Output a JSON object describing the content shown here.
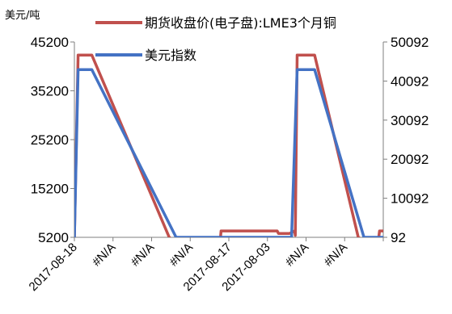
{
  "chart_data": {
    "type": "line",
    "ylabel_left": "美元/吨",
    "left_axis": {
      "ylim": [
        5200,
        45200
      ],
      "ticks": [
        "45200",
        "35200",
        "25200",
        "15200",
        "5200"
      ]
    },
    "right_axis": {
      "ylim": [
        92,
        50092
      ],
      "ticks": [
        "50092",
        "40092",
        "30092",
        "20092",
        "10092",
        "92"
      ]
    },
    "x_tick_labels": [
      "2017-08-18",
      "#N/A",
      "#N/A",
      "#N/A",
      "2017-08-17",
      "2017-08-03",
      "#N/A",
      "#N/A"
    ],
    "legend_placement": "top-right",
    "grid": false,
    "series": [
      {
        "name": "期货收盘价(电子盘):LME3个月铜",
        "axis": "left",
        "color": "#C0504D",
        "points": [
          [
            0,
            5200
          ],
          [
            0.6,
            42500
          ],
          [
            2.8,
            42500
          ],
          [
            15.2,
            5200
          ],
          [
            16.8,
            3500
          ],
          [
            23.3,
            3500
          ],
          [
            23.5,
            6500
          ],
          [
            32.5,
            6500
          ],
          [
            32.7,
            6000
          ],
          [
            34.5,
            6000
          ],
          [
            35.3,
            6500
          ],
          [
            35.4,
            5600
          ],
          [
            35.7,
            42500
          ],
          [
            38.5,
            42500
          ],
          [
            45.5,
            5200
          ],
          [
            47.6,
            3500
          ],
          [
            48.6,
            3500
          ],
          [
            48.9,
            6500
          ],
          [
            49.5,
            6500
          ]
        ]
      },
      {
        "name": "美元指数",
        "axis": "right",
        "color": "#4472C4",
        "points": [
          [
            0,
            92
          ],
          [
            0.6,
            43000
          ],
          [
            2.8,
            43000
          ],
          [
            16.3,
            92
          ],
          [
            34.8,
            92
          ],
          [
            35.7,
            43000
          ],
          [
            38.5,
            43000
          ],
          [
            46.4,
            92
          ],
          [
            49.5,
            92
          ]
        ]
      }
    ]
  }
}
